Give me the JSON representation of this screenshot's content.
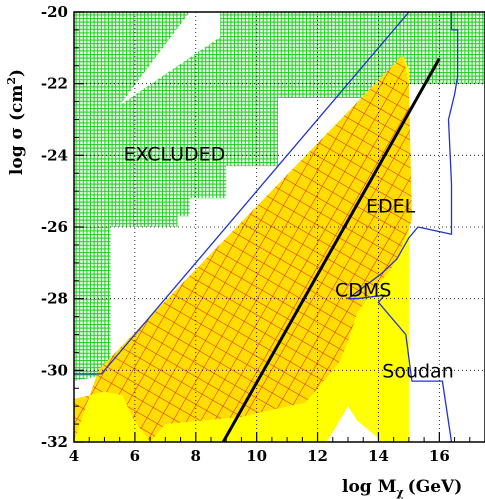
{
  "chart_data": {
    "type": "area",
    "title": "",
    "xlabel": "log M",
    "xlabel_sub": "χ",
    "xlabel_unit": "(GeV)",
    "ylabel": "log σ (cm",
    "ylabel_sup": "2",
    "ylabel_end": ")",
    "xlim": [
      4,
      17.5
    ],
    "ylim": [
      -32,
      -20
    ],
    "xticks": [
      4,
      6,
      8,
      10,
      12,
      14,
      16
    ],
    "yticks": [
      -20,
      -22,
      -24,
      -26,
      -28,
      -30,
      -32
    ],
    "grid": true,
    "colors": {
      "excluded": "#22cc22",
      "allowed_fill": "#ffff00",
      "allowed_hatch": "#dd2222",
      "limit_line": "#2233cc",
      "black_line": "#000000"
    },
    "regions": [
      {
        "name": "excluded",
        "x": [
          4,
          17.5,
          17.5,
          14.4,
          13.5,
          10.7,
          10.7,
          9.0,
          9.0,
          7.8,
          7.8,
          7.4,
          7.4,
          5.2,
          5.2,
          4
        ],
        "y": [
          -20,
          -20,
          -22,
          -22,
          -22.4,
          -22.4,
          -24.3,
          -24.3,
          -25.2,
          -25.2,
          -25.7,
          -25.7,
          -26,
          -26,
          -30.1,
          -30.3
        ]
      },
      {
        "name": "excluded-white-wedge",
        "x": [
          5.5,
          7.8,
          8.8,
          8.8,
          5.5
        ],
        "y": [
          -22.6,
          -20,
          -20,
          -20.7,
          -22.6
        ]
      },
      {
        "name": "allowed-yellow",
        "x": [
          4,
          4.8,
          14.8,
          15.0,
          15.0,
          14.0,
          14.0,
          13.3,
          13.0,
          12.3,
          6.6,
          4
        ],
        "y": [
          -32,
          -30.0,
          -21.2,
          -21.6,
          -32,
          -32,
          -31.9,
          -31.4,
          -31.0,
          -32,
          -32,
          -32
        ]
      },
      {
        "name": "allowed-hatched",
        "x": [
          4,
          4.8,
          14.8,
          15.0,
          15.1,
          14.7,
          14.4,
          13.8,
          13.3,
          13.0,
          12.7,
          11.6,
          10.5,
          9.5,
          7.0,
          6.5,
          5.9,
          5.6,
          5.0,
          4
        ],
        "y": [
          -32,
          -30.0,
          -21.2,
          -22.0,
          -25.8,
          -26.7,
          -27.2,
          -27.8,
          -28.4,
          -29.2,
          -29.8,
          -30.9,
          -31.1,
          -31.3,
          -31.5,
          -32,
          -31.3,
          -30.7,
          -30.6,
          -30.8
        ]
      }
    ],
    "series": [
      {
        "name": "black-line",
        "x": [
          8.9,
          16.0
        ],
        "y": [
          -32,
          -21.3
        ]
      },
      {
        "name": "limit-curve",
        "x": [
          4,
          4.9,
          15.0,
          16.4,
          16.4,
          16.6,
          16.6,
          16.5,
          16.3,
          16.4,
          16.4,
          15.3,
          15.0,
          14.6,
          14.1,
          13.0,
          13.3,
          14.2,
          14.0,
          14.9,
          15.1,
          16.1,
          16.4,
          16.2
        ],
        "y": [
          -30.1,
          -30.1,
          -20.0,
          -20.0,
          -20.5,
          -20.5,
          -21.8,
          -22.3,
          -23.0,
          -24.8,
          -26.2,
          -26.0,
          -26.3,
          -26.9,
          -27.3,
          -28.0,
          -28.0,
          -27.9,
          -28.1,
          -29.0,
          -30.3,
          -30.3,
          -32,
          -32
        ]
      }
    ],
    "annotations": [
      {
        "text": "EXCLUDED",
        "x": 7.3,
        "y": -23.95
      },
      {
        "text": "EDEL",
        "x": 14.4,
        "y": -25.4
      },
      {
        "text": "CDMS",
        "x": 13.5,
        "y": -27.75
      },
      {
        "text": "Soudan",
        "x": 15.3,
        "y": -30.0
      }
    ]
  }
}
